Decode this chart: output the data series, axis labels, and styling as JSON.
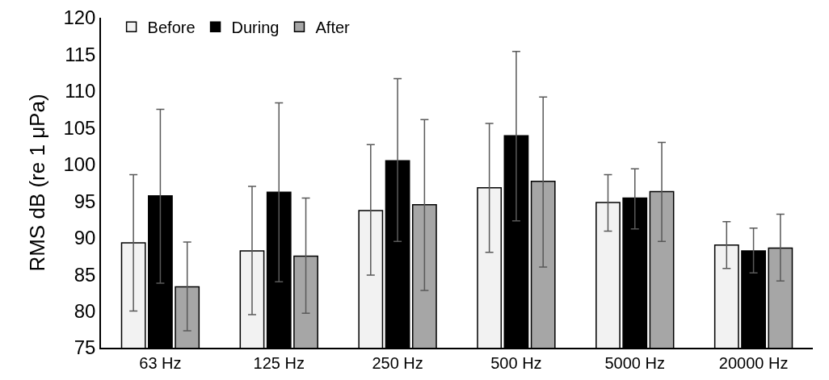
{
  "chart_data": {
    "type": "bar",
    "ylabel": "RMS dB (re 1 μPa)",
    "categories": [
      "63 Hz",
      "125 Hz",
      "250 Hz",
      "500 Hz",
      "5000 Hz",
      "20000 Hz"
    ],
    "series": [
      {
        "name": "Before",
        "color": "#f2f2f2",
        "values": [
          89.3,
          88.2,
          93.7,
          96.8,
          94.8,
          89.0
        ],
        "errors": [
          [
            80.0,
            98.6
          ],
          [
            79.5,
            97.0
          ],
          [
            84.9,
            102.7
          ],
          [
            88.0,
            105.6
          ],
          [
            90.9,
            98.6
          ],
          [
            85.8,
            92.2
          ]
        ]
      },
      {
        "name": "During",
        "color": "#000000",
        "values": [
          95.7,
          96.2,
          100.5,
          103.9,
          95.4,
          88.2
        ],
        "errors": [
          [
            83.8,
            107.5
          ],
          [
            84.0,
            108.4
          ],
          [
            89.5,
            111.7
          ],
          [
            92.3,
            115.4
          ],
          [
            91.2,
            99.4
          ],
          [
            85.2,
            91.3
          ]
        ]
      },
      {
        "name": "After",
        "color": "#a6a6a6",
        "values": [
          83.3,
          87.5,
          94.5,
          97.7,
          96.3,
          88.6
        ],
        "errors": [
          [
            77.3,
            89.4
          ],
          [
            79.7,
            95.4
          ],
          [
            82.8,
            106.1
          ],
          [
            86.0,
            109.2
          ],
          [
            89.5,
            103.0
          ],
          [
            84.1,
            93.2
          ]
        ]
      }
    ],
    "ylim": [
      75,
      120
    ],
    "yticks": [
      75,
      80,
      85,
      90,
      95,
      100,
      105,
      110,
      115,
      120
    ],
    "grid": false,
    "legend": "top left"
  }
}
